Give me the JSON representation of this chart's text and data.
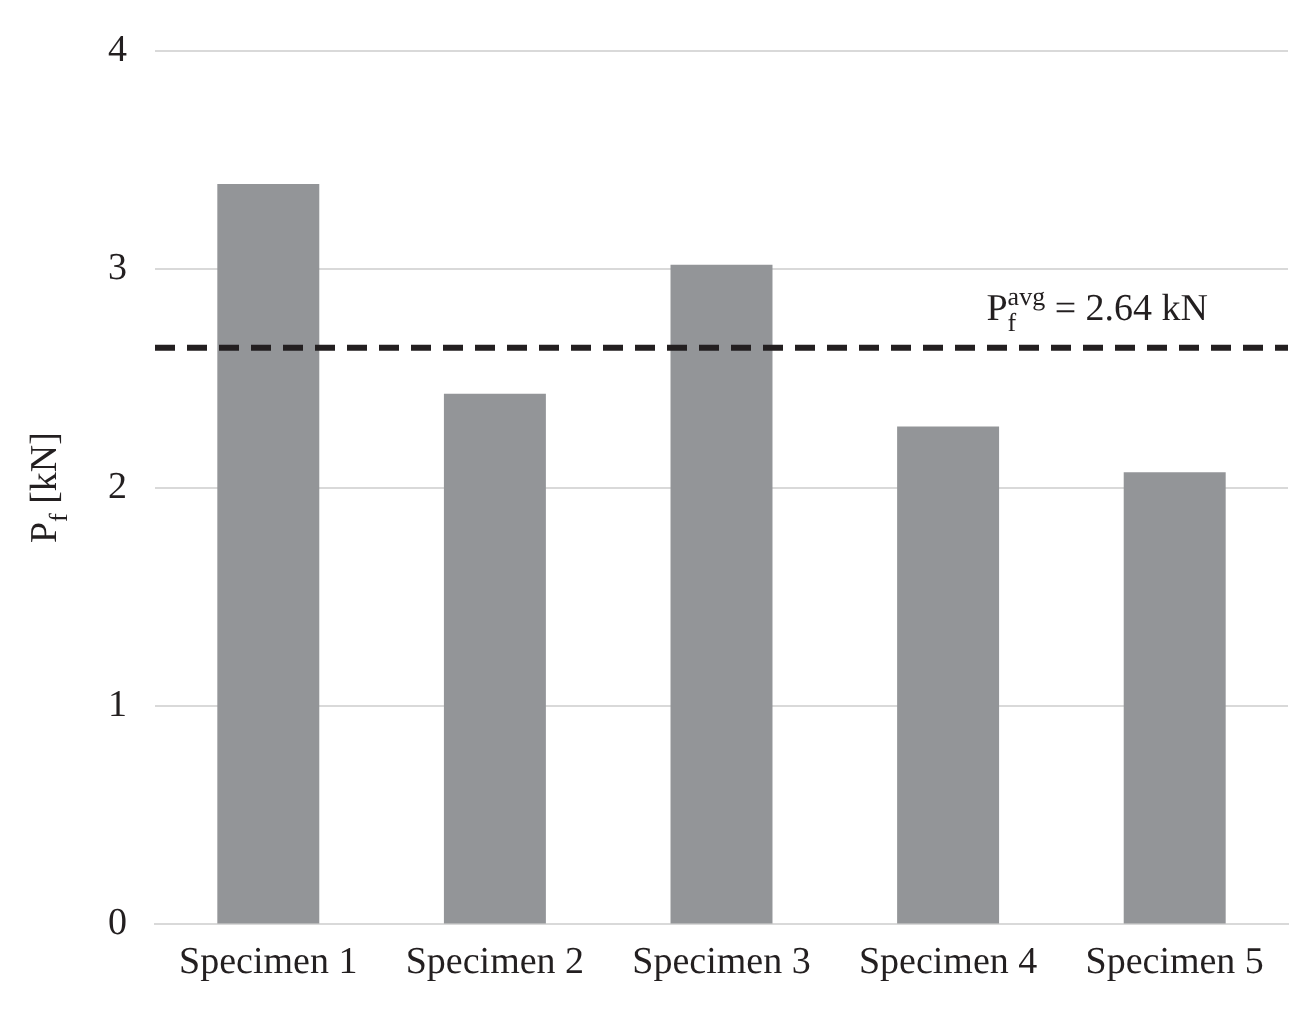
{
  "chart_data": {
    "type": "bar",
    "ylabel": "P$_{f}$ [kN]",
    "categories": [
      "Specimen 1",
      "Specimen 2",
      "Specimen 3",
      "Specimen 4",
      "Specimen 5"
    ],
    "values": [
      3.39,
      2.43,
      3.02,
      2.28,
      2.07
    ],
    "color": "#939598",
    "ylim": [
      0,
      4
    ],
    "yticks": [
      0,
      1,
      2,
      3,
      4
    ],
    "grid": "y",
    "legend": false,
    "ref_lines": [
      {
        "axis": "y",
        "value": 2.64,
        "label": "P$_{f}$$^{avg}$ = 2.64 kN",
        "color": "#231f20",
        "line_style": "dashed"
      }
    ]
  }
}
